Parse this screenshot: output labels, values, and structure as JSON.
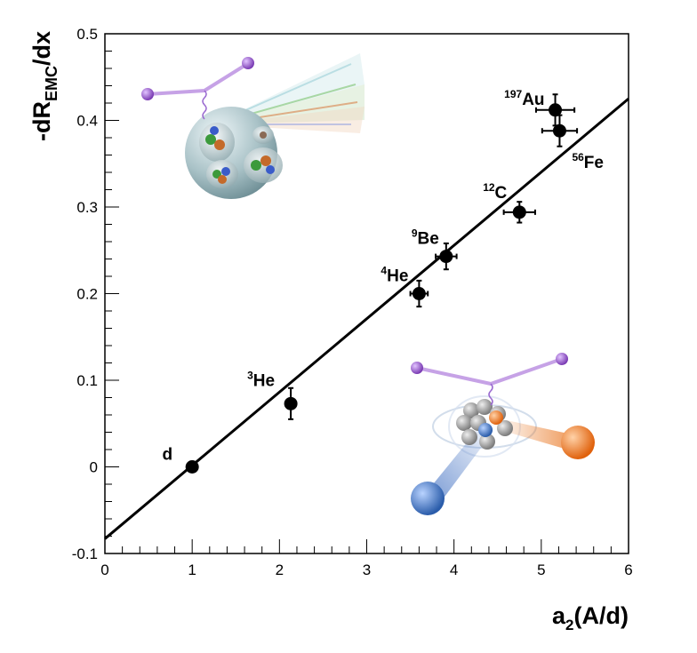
{
  "chart_data": {
    "type": "scatter",
    "title": "",
    "xlabel": {
      "main": "a",
      "sub": "2",
      "tail": "(A/d)"
    },
    "ylabel": {
      "prefix": "-dR",
      "sub": "EMC",
      "tail": "/dx"
    },
    "xlim": [
      0,
      6
    ],
    "ylim": [
      -0.1,
      0.5
    ],
    "xticks": [
      0,
      1,
      2,
      3,
      4,
      5,
      6
    ],
    "yticks": [
      -0.1,
      0,
      0.1,
      0.2,
      0.3,
      0.4,
      0.5
    ],
    "ytick_labels": [
      "-0.1",
      "0",
      "0.1",
      "0.2",
      "0.3",
      "0.4",
      "0.5"
    ],
    "points": [
      {
        "label_sup": "",
        "label": "d",
        "x": 1.0,
        "y": 0.0,
        "xerr": 0.0,
        "yerr": 0.0
      },
      {
        "label_sup": "3",
        "label": "He",
        "x": 2.13,
        "y": 0.073,
        "xerr": 0.0,
        "yerr": 0.018
      },
      {
        "label_sup": "4",
        "label": "He",
        "x": 3.6,
        "y": 0.2,
        "xerr": 0.1,
        "yerr": 0.015
      },
      {
        "label_sup": "9",
        "label": "Be",
        "x": 3.91,
        "y": 0.243,
        "xerr": 0.12,
        "yerr": 0.015
      },
      {
        "label_sup": "12",
        "label": "C",
        "x": 4.75,
        "y": 0.294,
        "xerr": 0.18,
        "yerr": 0.012
      },
      {
        "label_sup": "56",
        "label": "Fe",
        "x": 5.21,
        "y": 0.388,
        "xerr": 0.2,
        "yerr": 0.018
      },
      {
        "label_sup": "197",
        "label": "Au",
        "x": 5.16,
        "y": 0.412,
        "xerr": 0.22,
        "yerr": 0.018
      }
    ],
    "fit_line": {
      "x": [
        0,
        6
      ],
      "y": [
        -0.083,
        0.425
      ]
    },
    "grid": false,
    "legend": "none"
  },
  "illustrations": {
    "top_left": "nucleus-quarks-scattering",
    "bottom_right": "short-range-correlated-pair"
  }
}
